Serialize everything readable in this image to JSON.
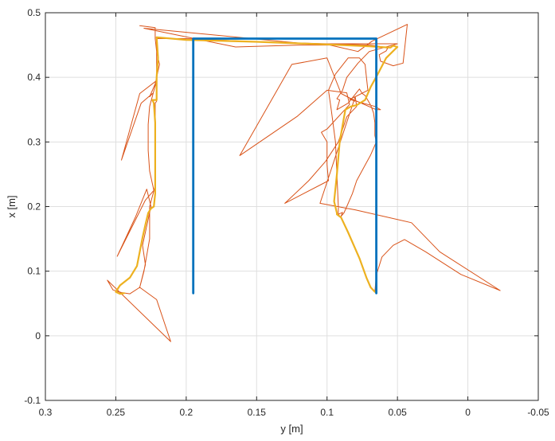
{
  "chart_data": {
    "type": "line",
    "title": "",
    "xlabel": "y [m]",
    "ylabel": "x [m]",
    "xlim": [
      0.3,
      -0.05
    ],
    "ylim": [
      -0.1,
      0.5
    ],
    "x_reversed": true,
    "grid": true,
    "x_ticks": [
      0.3,
      0.25,
      0.2,
      0.15,
      0.1,
      0.05,
      0,
      -0.05
    ],
    "x_tick_labels": [
      "0.3",
      "0.25",
      "0.2",
      "0.15",
      "0.1",
      "0.05",
      "0",
      "-0.05"
    ],
    "y_ticks": [
      -0.1,
      0,
      0.1,
      0.2,
      0.3,
      0.4,
      0.5
    ],
    "y_tick_labels": [
      "-0.1",
      "0",
      "0.1",
      "0.2",
      "0.3",
      "0.4",
      "0.5"
    ],
    "colors": {
      "blue": "#0072BD",
      "orange": "#D95319",
      "yellow": "#EDB120",
      "grid": "#dfdfdf",
      "axis": "#262626"
    },
    "series": [
      {
        "color": "#D95319",
        "width": 1,
        "points": [
          [
            0.233,
            0.48
          ],
          [
            0.222,
            0.477
          ],
          [
            0.222,
            0.46
          ],
          [
            0.221,
            0.44
          ],
          [
            0.219,
            0.42
          ],
          [
            0.222,
            0.39
          ],
          [
            0.224,
            0.38
          ],
          [
            0.226,
            0.37
          ],
          [
            0.224,
            0.375
          ],
          [
            0.232,
            0.36
          ],
          [
            0.246,
            0.272
          ],
          [
            0.233,
            0.375
          ],
          [
            0.221,
            0.395
          ],
          [
            0.226,
            0.355
          ],
          [
            0.227,
            0.327
          ],
          [
            0.227,
            0.287
          ],
          [
            0.226,
            0.255
          ],
          [
            0.223,
            0.225
          ],
          [
            0.229,
            0.21
          ],
          [
            0.249,
            0.123
          ],
          [
            0.236,
            0.184
          ],
          [
            0.228,
            0.227
          ],
          [
            0.225,
            0.2
          ],
          [
            0.228,
            0.17
          ],
          [
            0.231,
            0.14
          ],
          [
            0.229,
            0.11
          ],
          [
            0.233,
            0.075
          ],
          [
            0.221,
            0.056
          ],
          [
            0.211,
            -0.009
          ],
          [
            0.256,
            0.086
          ],
          [
            0.252,
            0.071
          ],
          [
            0.246,
            0.067
          ],
          [
            0.24,
            0.065
          ],
          [
            0.233,
            0.075
          ],
          [
            0.23,
            0.1
          ],
          [
            0.226,
            0.15
          ],
          [
            0.226,
            0.2
          ],
          [
            0.222,
            0.232
          ],
          [
            0.222,
            0.26
          ],
          [
            0.222,
            0.3
          ],
          [
            0.222,
            0.36
          ],
          [
            0.221,
            0.363
          ],
          [
            0.221,
            0.42
          ],
          [
            0.221,
            0.46
          ],
          [
            0.2,
            0.46
          ],
          [
            0.15,
            0.455
          ],
          [
            0.1,
            0.452
          ],
          [
            0.07,
            0.45
          ],
          [
            0.06,
            0.447
          ],
          [
            0.057,
            0.445
          ],
          [
            0.058,
            0.441
          ],
          [
            0.063,
            0.435
          ],
          [
            0.062,
            0.425
          ],
          [
            0.053,
            0.418
          ],
          [
            0.046,
            0.422
          ],
          [
            0.043,
            0.482
          ],
          [
            0.068,
            0.456
          ],
          [
            0.078,
            0.44
          ],
          [
            0.098,
            0.45
          ],
          [
            0.12,
            0.45
          ],
          [
            0.165,
            0.447
          ],
          [
            0.23,
            0.476
          ],
          [
            0.115,
            0.452
          ],
          [
            0.05,
            0.452
          ],
          [
            0.07,
            0.44
          ],
          [
            0.078,
            0.422
          ],
          [
            0.086,
            0.4
          ],
          [
            0.089,
            0.38
          ],
          [
            0.093,
            0.367
          ],
          [
            0.091,
            0.365
          ],
          [
            0.093,
            0.35
          ],
          [
            0.085,
            0.36
          ],
          [
            0.077,
            0.382
          ],
          [
            0.075,
            0.375
          ],
          [
            0.073,
            0.372
          ],
          [
            0.069,
            0.357
          ],
          [
            0.067,
            0.345
          ],
          [
            0.066,
            0.33
          ],
          [
            0.066,
            0.31
          ],
          [
            0.065,
            0.3
          ],
          [
            0.069,
            0.28
          ],
          [
            0.074,
            0.26
          ],
          [
            0.079,
            0.24
          ],
          [
            0.082,
            0.22
          ],
          [
            0.086,
            0.2
          ],
          [
            0.088,
            0.19
          ],
          [
            0.09,
            0.185
          ],
          [
            0.089,
            0.191
          ],
          [
            0.092,
            0.188
          ],
          [
            0.091,
            0.185
          ],
          [
            0.092,
            0.186
          ],
          [
            0.092,
            0.19
          ],
          [
            0.092,
            0.2
          ],
          [
            0.093,
            0.25
          ],
          [
            0.094,
            0.3
          ],
          [
            0.097,
            0.35
          ],
          [
            0.099,
            0.38
          ],
          [
            0.094,
            0.405
          ],
          [
            0.085,
            0.43
          ],
          [
            0.077,
            0.43
          ],
          [
            0.073,
            0.42
          ],
          [
            0.072,
            0.4
          ],
          [
            0.071,
            0.38
          ],
          [
            0.08,
            0.37
          ],
          [
            0.084,
            0.366
          ],
          [
            0.081,
            0.364
          ],
          [
            0.066,
            0.355
          ],
          [
            0.062,
            0.35
          ],
          [
            0.065,
            0.35
          ],
          [
            0.083,
            0.367
          ],
          [
            0.09,
            0.375
          ],
          [
            0.1,
            0.43
          ],
          [
            0.125,
            0.42
          ],
          [
            0.162,
            0.279
          ],
          [
            0.121,
            0.34
          ],
          [
            0.1,
            0.38
          ],
          [
            0.086,
            0.376
          ],
          [
            0.084,
            0.358
          ],
          [
            0.1,
            0.32
          ],
          [
            0.104,
            0.315
          ],
          [
            0.1,
            0.3
          ],
          [
            0.1,
            0.28
          ],
          [
            0.1,
            0.265
          ],
          [
            0.099,
            0.24
          ],
          [
            0.13,
            0.205
          ],
          [
            0.113,
            0.24
          ],
          [
            0.101,
            0.27
          ],
          [
            0.092,
            0.3
          ],
          [
            0.086,
            0.339
          ],
          [
            0.079,
            0.355
          ],
          [
            0.08,
            0.37
          ],
          [
            0.105,
            0.205
          ],
          [
            0.08,
            0.195
          ],
          [
            0.04,
            0.175
          ],
          [
            0.02,
            0.13
          ],
          [
            -0.023,
            0.07
          ],
          [
            0.005,
            0.095
          ],
          [
            0.03,
            0.13
          ],
          [
            0.045,
            0.149
          ],
          [
            0.053,
            0.14
          ],
          [
            0.061,
            0.122
          ],
          [
            0.065,
            0.094
          ],
          [
            0.066,
            0.068
          ]
        ]
      },
      {
        "color": "#EDB120",
        "width": 2.2,
        "points": [
          [
            0.244,
            0.066
          ],
          [
            0.247,
            0.065
          ],
          [
            0.25,
            0.068
          ],
          [
            0.247,
            0.078
          ],
          [
            0.24,
            0.09
          ],
          [
            0.235,
            0.108
          ],
          [
            0.233,
            0.13
          ],
          [
            0.231,
            0.152
          ],
          [
            0.229,
            0.172
          ],
          [
            0.227,
            0.19
          ],
          [
            0.225,
            0.197
          ],
          [
            0.223,
            0.2
          ],
          [
            0.222,
            0.22
          ],
          [
            0.222,
            0.26
          ],
          [
            0.222,
            0.3
          ],
          [
            0.222,
            0.33
          ],
          [
            0.223,
            0.36
          ],
          [
            0.224,
            0.365
          ],
          [
            0.221,
            0.365
          ],
          [
            0.221,
            0.4
          ],
          [
            0.22,
            0.43
          ],
          [
            0.221,
            0.462
          ],
          [
            0.2,
            0.458
          ],
          [
            0.15,
            0.455
          ],
          [
            0.1,
            0.451
          ],
          [
            0.07,
            0.448
          ],
          [
            0.055,
            0.446
          ],
          [
            0.053,
            0.449
          ],
          [
            0.05,
            0.447
          ],
          [
            0.052,
            0.443
          ],
          [
            0.058,
            0.43
          ],
          [
            0.064,
            0.405
          ],
          [
            0.069,
            0.385
          ],
          [
            0.073,
            0.365
          ],
          [
            0.079,
            0.357
          ],
          [
            0.083,
            0.355
          ],
          [
            0.087,
            0.35
          ],
          [
            0.091,
            0.3
          ],
          [
            0.093,
            0.25
          ],
          [
            0.095,
            0.208
          ],
          [
            0.093,
            0.19
          ],
          [
            0.093,
            0.188
          ],
          [
            0.09,
            0.183
          ],
          [
            0.085,
            0.16
          ],
          [
            0.077,
            0.12
          ],
          [
            0.072,
            0.09
          ],
          [
            0.069,
            0.075
          ],
          [
            0.066,
            0.068
          ],
          [
            0.065,
            0.068
          ]
        ]
      },
      {
        "color": "#0072BD",
        "width": 2.8,
        "points": [
          [
            0.195,
            0.066
          ],
          [
            0.195,
            0.46
          ],
          [
            0.065,
            0.46
          ],
          [
            0.065,
            0.066
          ]
        ]
      }
    ]
  }
}
